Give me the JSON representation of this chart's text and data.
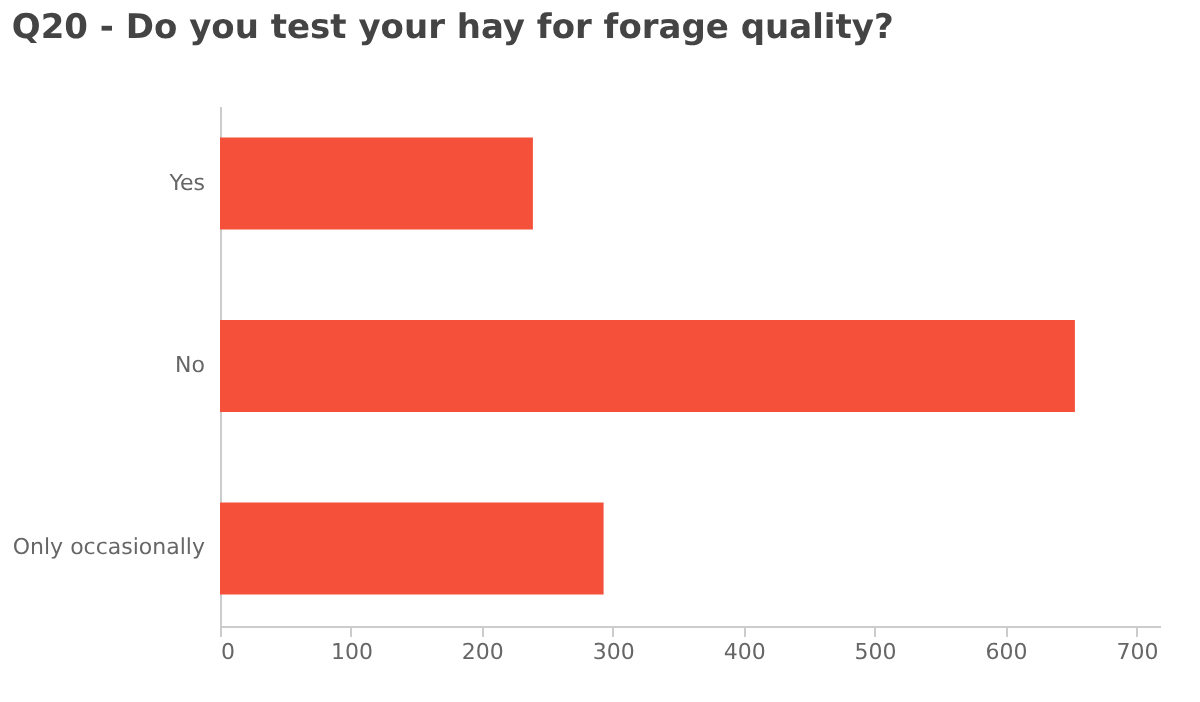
{
  "chart_data": {
    "type": "bar",
    "orientation": "horizontal",
    "title": "Q20 - Do you test your hay for forage quality?",
    "categories": [
      "Yes",
      "No",
      "Only occasionally"
    ],
    "values": [
      239,
      653,
      293
    ],
    "color": "#f55039",
    "xlim": [
      0,
      718
    ],
    "xticks": [
      0,
      100,
      200,
      300,
      400,
      500,
      600,
      700
    ],
    "grid": false
  }
}
